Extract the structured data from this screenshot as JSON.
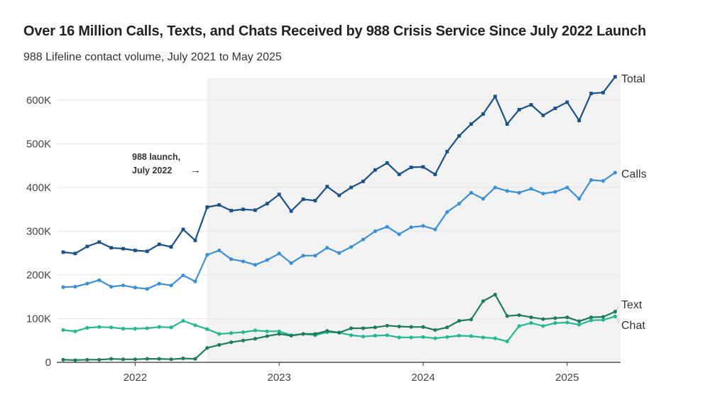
{
  "chart_data": {
    "type": "line",
    "title": "Over 16 Million Calls, Texts, and Chats Received by 988 Crisis Service Since July 2022 Launch",
    "subtitle": "988 Lifeline contact volume, July 2021 to May 2025",
    "xlabel": "",
    "ylabel": "",
    "ylim": [
      0,
      650000
    ],
    "y_ticks": [
      0,
      100000,
      200000,
      300000,
      400000,
      500000,
      600000
    ],
    "y_tick_labels": [
      "0",
      "100K",
      "200K",
      "300K",
      "400K",
      "500K",
      "600K"
    ],
    "x_tick_labels": [
      "2022",
      "2023",
      "2024",
      "2025"
    ],
    "x_tick_month_index": [
      6,
      18,
      30,
      42
    ],
    "start_month": "2021-07",
    "shaded_from_month_index": 12,
    "annotation": {
      "line1": "988 launch,",
      "line2": "July 2022",
      "arrow": "→"
    },
    "colors": {
      "total": "#1a5186",
      "calls": "#3b8fd6",
      "text": "#1f7a5e",
      "chat": "#22b98f",
      "shade": "#f2f2f2",
      "grid": "#e6e6e6"
    },
    "series": [
      {
        "name": "Total",
        "key": "total",
        "values": [
          252000,
          249000,
          265000,
          275000,
          262000,
          260000,
          256000,
          254000,
          270000,
          264000,
          304000,
          279000,
          355000,
          360000,
          347000,
          350000,
          348000,
          363000,
          384000,
          346000,
          373000,
          370000,
          402000,
          382000,
          400000,
          414000,
          440000,
          456000,
          430000,
          446000,
          447000,
          430000,
          482000,
          518000,
          545000,
          568000,
          608000,
          545000,
          578000,
          589000,
          565000,
          581000,
          595000,
          553000,
          615000,
          617000,
          653000
        ]
      },
      {
        "name": "Calls",
        "key": "calls",
        "values": [
          172000,
          173000,
          180000,
          188000,
          173000,
          176000,
          171000,
          168000,
          180000,
          176000,
          199000,
          185000,
          246000,
          256000,
          236000,
          231000,
          223000,
          234000,
          249000,
          227000,
          244000,
          244000,
          262000,
          250000,
          264000,
          281000,
          300000,
          310000,
          293000,
          309000,
          312000,
          304000,
          344000,
          363000,
          388000,
          374000,
          400000,
          392000,
          388000,
          397000,
          386000,
          390000,
          400000,
          374000,
          417000,
          415000,
          434000
        ]
      },
      {
        "name": "Text",
        "key": "text",
        "values": [
          6000,
          5000,
          6000,
          6000,
          8000,
          7000,
          7000,
          8000,
          8000,
          7000,
          9000,
          8000,
          33000,
          40000,
          46000,
          50000,
          54000,
          60000,
          65000,
          61000,
          65000,
          65000,
          72000,
          68000,
          78000,
          78000,
          80000,
          84000,
          82000,
          81000,
          81000,
          74000,
          80000,
          95000,
          98000,
          140000,
          155000,
          106000,
          108000,
          103000,
          99000,
          101000,
          103000,
          94000,
          103000,
          104000,
          116000
        ]
      },
      {
        "name": "Chat",
        "key": "chat",
        "values": [
          74000,
          71000,
          79000,
          81000,
          80000,
          77000,
          77000,
          78000,
          81000,
          80000,
          95000,
          85000,
          76000,
          65000,
          67000,
          69000,
          73000,
          71000,
          71000,
          62000,
          65000,
          62000,
          69000,
          68000,
          62000,
          59000,
          61000,
          62000,
          57000,
          57000,
          58000,
          55000,
          58000,
          61000,
          60000,
          57000,
          55000,
          48000,
          83000,
          90000,
          83000,
          90000,
          91000,
          86000,
          96000,
          97000,
          105000
        ]
      }
    ]
  }
}
